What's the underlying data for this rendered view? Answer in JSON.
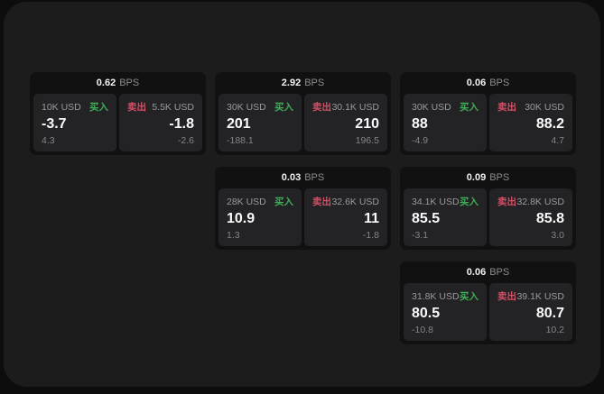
{
  "colors": {
    "outer_bg": "#0d0d0e",
    "window_bg": "#1c1c1d",
    "card_bg": "#111112",
    "panel_bg": "#232326",
    "text_primary": "#fafafa",
    "text_muted": "#8c8c8c",
    "buy_green": "#3fae57",
    "sell_red": "#d25064"
  },
  "labels": {
    "bps": "BPS",
    "buy": "买入",
    "sell": "卖出"
  },
  "cards": [
    {
      "spread_bps": "0.62",
      "buy": {
        "amount": "10K USD",
        "price": "-3.7",
        "change": "4.3"
      },
      "sell": {
        "amount": "5.5K USD",
        "price": "-1.8",
        "change": "-2.6"
      }
    },
    {
      "spread_bps": "2.92",
      "buy": {
        "amount": "30K USD",
        "price": "201",
        "change": "-188.1"
      },
      "sell": {
        "amount": "30.1K USD",
        "price": "210",
        "change": "196.5"
      }
    },
    {
      "spread_bps": "0.06",
      "buy": {
        "amount": "30K USD",
        "price": "88",
        "change": "-4.9"
      },
      "sell": {
        "amount": "30K USD",
        "price": "88.2",
        "change": "4.7"
      }
    },
    {
      "spread_bps": "0.03",
      "buy": {
        "amount": "28K USD",
        "price": "10.9",
        "change": "1.3"
      },
      "sell": {
        "amount": "32.6K USD",
        "price": "11",
        "change": "-1.8"
      }
    },
    {
      "spread_bps": "0.09",
      "buy": {
        "amount": "34.1K USD",
        "price": "85.5",
        "change": "-3.1"
      },
      "sell": {
        "amount": "32.8K USD",
        "price": "85.8",
        "change": "3.0"
      }
    },
    {
      "spread_bps": "0.06",
      "buy": {
        "amount": "31.8K USD",
        "price": "80.5",
        "change": "-10.8"
      },
      "sell": {
        "amount": "39.1K USD",
        "price": "80.7",
        "change": "10.2"
      }
    }
  ]
}
